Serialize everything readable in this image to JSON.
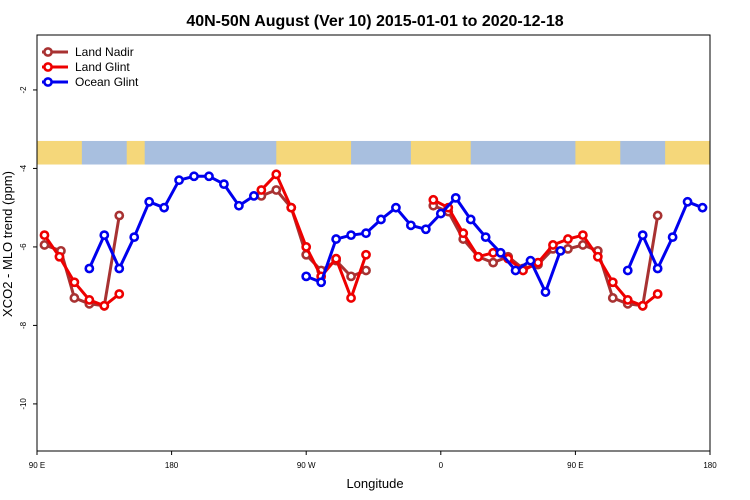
{
  "chart_data": {
    "type": "line",
    "title": "40N-50N August (Ver 10)   2015-01-01 to 2020-12-18",
    "xlabel": "Longitude",
    "ylabel": "XCO2 - MLO trend (ppm)",
    "x_unwrapped_range": [
      90,
      450
    ],
    "x_ticks": [
      {
        "x": 90,
        "label": "90 E"
      },
      {
        "x": 180,
        "label": "180"
      },
      {
        "x": 270,
        "label": "90 W"
      },
      {
        "x": 360,
        "label": "0"
      },
      {
        "x": 450,
        "label": "90 E"
      },
      {
        "x": 540,
        "label": "180"
      }
    ],
    "xlim": [
      90,
      540
    ],
    "ylim": [
      -11.2,
      -0.6
    ],
    "y_ticks": [
      -2,
      -4,
      -6,
      -8,
      -10
    ],
    "grid": false,
    "legend_position": "top-left",
    "map_strip": {
      "y_top": -3.3,
      "y_bottom": -3.9,
      "ocean_color": "#a8bfdf",
      "land_color": "#f5d77a"
    },
    "series": [
      {
        "name": "Land Nadir",
        "color": "#a83232",
        "segments": [
          [
            [
              95,
              -5.95
            ],
            [
              106,
              -6.1
            ],
            [
              115,
              -7.3
            ],
            [
              125,
              -7.45
            ],
            [
              135,
              -7.5
            ],
            [
              145,
              -5.2
            ]
          ],
          [
            [
              240,
              -4.7
            ],
            [
              250,
              -4.55
            ],
            [
              260,
              -5.0
            ],
            [
              270,
              -6.2
            ],
            [
              280,
              -6.6
            ],
            [
              290,
              -6.35
            ],
            [
              300,
              -6.75
            ],
            [
              310,
              -6.6
            ]
          ],
          [
            [
              355,
              -4.95
            ],
            [
              365,
              -5.1
            ],
            [
              375,
              -5.8
            ],
            [
              385,
              -6.25
            ],
            [
              395,
              -6.4
            ],
            [
              405,
              -6.25
            ],
            [
              415,
              -6.55
            ],
            [
              425,
              -6.45
            ],
            [
              435,
              -6.05
            ],
            [
              445,
              -6.05
            ],
            [
              455,
              -5.95
            ],
            [
              465,
              -6.1
            ],
            [
              475,
              -7.3
            ],
            [
              485,
              -7.45
            ],
            [
              495,
              -7.5
            ],
            [
              505,
              -5.2
            ]
          ]
        ]
      },
      {
        "name": "Land Glint",
        "color": "#ee0000",
        "segments": [
          [
            [
              95,
              -5.7
            ],
            [
              105,
              -6.25
            ],
            [
              115,
              -6.9
            ],
            [
              125,
              -7.35
            ],
            [
              135,
              -7.5
            ],
            [
              145,
              -7.2
            ]
          ],
          [
            [
              240,
              -4.55
            ],
            [
              250,
              -4.15
            ],
            [
              260,
              -5.0
            ],
            [
              270,
              -6.0
            ],
            [
              280,
              -6.75
            ],
            [
              290,
              -6.3
            ],
            [
              300,
              -7.3
            ],
            [
              310,
              -6.2
            ]
          ],
          [
            [
              355,
              -4.8
            ],
            [
              365,
              -5.0
            ],
            [
              375,
              -5.65
            ],
            [
              385,
              -6.25
            ],
            [
              395,
              -6.15
            ],
            [
              405,
              -6.3
            ],
            [
              415,
              -6.6
            ],
            [
              425,
              -6.4
            ],
            [
              435,
              -5.95
            ],
            [
              445,
              -5.8
            ],
            [
              455,
              -5.7
            ],
            [
              465,
              -6.25
            ],
            [
              475,
              -6.9
            ],
            [
              485,
              -7.35
            ],
            [
              495,
              -7.5
            ],
            [
              505,
              -7.2
            ]
          ]
        ]
      },
      {
        "name": "Ocean Glint",
        "color": "#0000ee",
        "segments": [
          [
            [
              125,
              -6.55
            ],
            [
              135,
              -5.7
            ],
            [
              145,
              -6.55
            ],
            [
              155,
              -5.75
            ],
            [
              165,
              -4.85
            ],
            [
              175,
              -5.0
            ],
            [
              185,
              -4.3
            ],
            [
              195,
              -4.2
            ],
            [
              205,
              -4.2
            ],
            [
              215,
              -4.4
            ],
            [
              225,
              -4.95
            ],
            [
              235,
              -4.7
            ]
          ],
          [
            [
              270,
              -6.75
            ],
            [
              280,
              -6.9
            ],
            [
              290,
              -5.8
            ],
            [
              300,
              -5.7
            ],
            [
              310,
              -5.65
            ],
            [
              320,
              -5.3
            ],
            [
              330,
              -5.0
            ],
            [
              340,
              -5.45
            ],
            [
              350,
              -5.55
            ],
            [
              360,
              -5.15
            ],
            [
              370,
              -4.75
            ],
            [
              380,
              -5.3
            ],
            [
              390,
              -5.75
            ],
            [
              400,
              -6.15
            ],
            [
              410,
              -6.6
            ],
            [
              420,
              -6.35
            ],
            [
              430,
              -7.15
            ],
            [
              440,
              -6.1
            ]
          ],
          [
            [
              485,
              -6.6
            ],
            [
              495,
              -5.7
            ],
            [
              505,
              -6.55
            ],
            [
              515,
              -5.75
            ],
            [
              525,
              -4.85
            ],
            [
              535,
              -5.0
            ]
          ]
        ]
      }
    ]
  }
}
